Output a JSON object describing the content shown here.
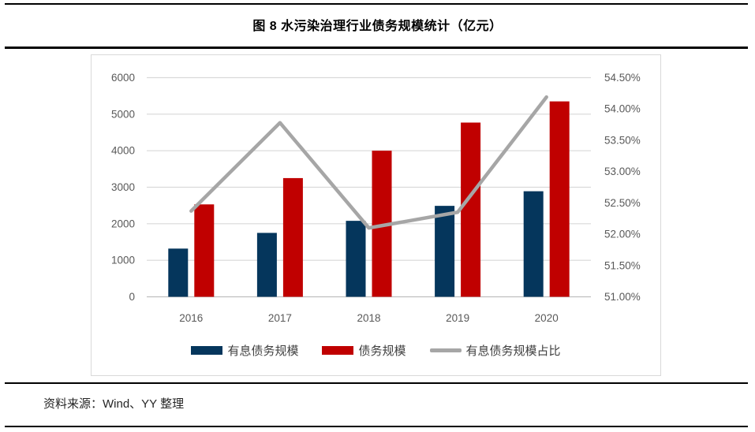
{
  "page": {
    "title": "图 8 水污染治理行业债务规模统计（亿元）",
    "source_note": "资料来源：Wind、YY 整理"
  },
  "chart_data": {
    "type": "combo-bar-line",
    "title": "图 8 水污染治理行业债务规模统计（亿元）",
    "categories": [
      "2016",
      "2017",
      "2018",
      "2019",
      "2020"
    ],
    "series": [
      {
        "name": "有息债务规模",
        "type": "bar",
        "axis": "left",
        "color": "#05365c",
        "values": [
          1320,
          1750,
          2080,
          2490,
          2890
        ]
      },
      {
        "name": "债务规模",
        "type": "bar",
        "axis": "left",
        "color": "#c00000",
        "values": [
          2530,
          3250,
          4000,
          4770,
          5350
        ]
      },
      {
        "name": "有息债务规模占比",
        "type": "line",
        "axis": "right",
        "color": "#a6a6a6",
        "values": [
          52.37,
          53.78,
          52.1,
          52.35,
          54.19
        ]
      }
    ],
    "left_axis": {
      "min": 0,
      "max": 6000,
      "step": 1000,
      "ticks": [
        "0",
        "1000",
        "2000",
        "3000",
        "4000",
        "5000",
        "6000"
      ]
    },
    "right_axis": {
      "min": 51,
      "max": 54.5,
      "step": 0.5,
      "ticks": [
        "51.00%",
        "51.50%",
        "52.00%",
        "52.50%",
        "53.00%",
        "53.50%",
        "54.00%",
        "54.50%"
      ]
    },
    "legend": [
      {
        "label": "有息债务规模",
        "swatch": "bar",
        "color": "#05365c"
      },
      {
        "label": "债务规模",
        "swatch": "bar",
        "color": "#c00000"
      },
      {
        "label": "有息债务规模占比",
        "swatch": "line",
        "color": "#a6a6a6"
      }
    ],
    "grid": true,
    "legend_position": "bottom",
    "colors": {
      "gridline": "#d9d9d9",
      "axis_line": "#bfbfbf",
      "tick_label": "#595959"
    }
  }
}
